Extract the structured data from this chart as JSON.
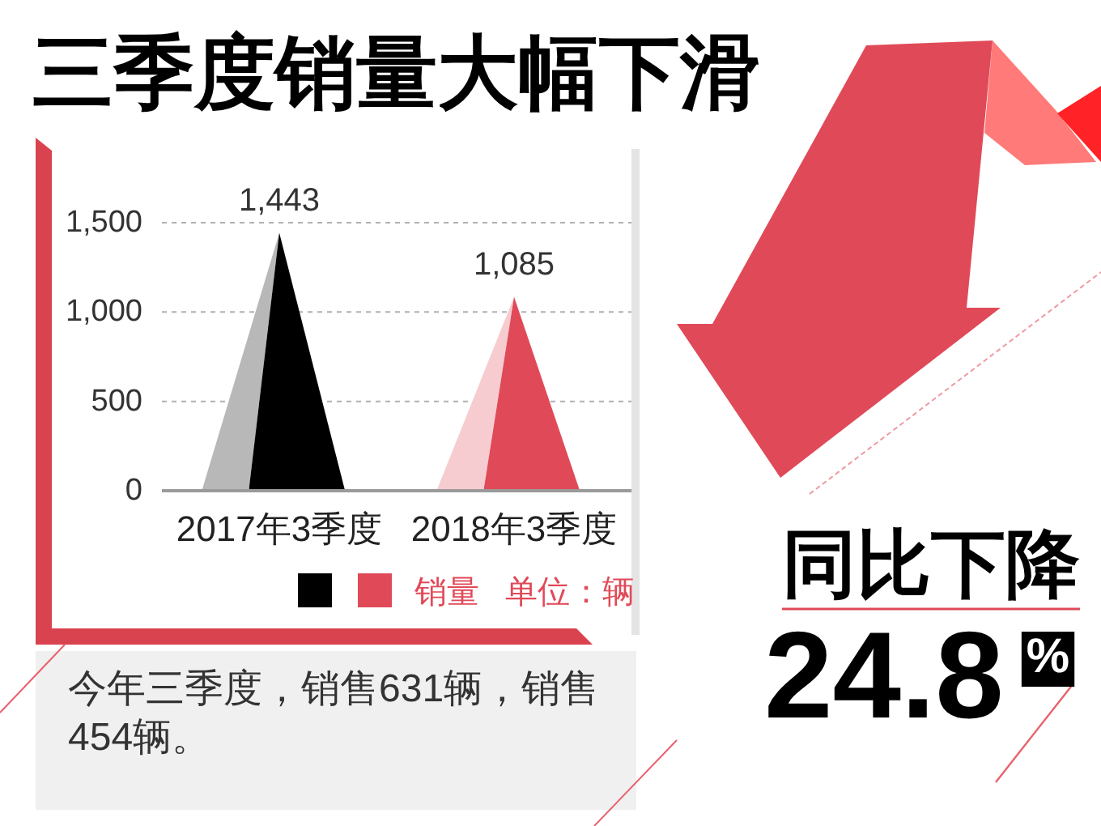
{
  "chart_data": {
    "type": "bar",
    "title": "三季度销量大幅下滑",
    "categories": [
      "2017年3季度",
      "2018年3季度"
    ],
    "series": [
      {
        "name": "销量",
        "values": [
          1443,
          1085
        ],
        "colors": [
          "#000000",
          "#e04a58"
        ],
        "value_labels": [
          "1,443",
          "1,085"
        ]
      }
    ],
    "ylim": [
      0,
      1500
    ],
    "yticks": [
      0,
      500,
      {
        "value": 1000,
        "label": "1,000"
      },
      {
        "value": 1500,
        "label": "1,500"
      }
    ],
    "grid": "y",
    "legend": "bottom",
    "annotations": [
      "单位：辆",
      "今年三季度，销售631辆，销售454辆。",
      "同比下降",
      "24.8%"
    ]
  }
}
